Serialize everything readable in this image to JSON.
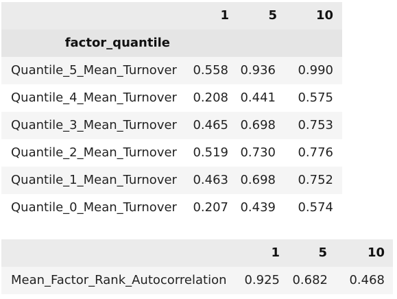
{
  "turnover_table": {
    "columns": [
      "1",
      "5",
      "10"
    ],
    "index_name": "factor_quantile",
    "rows": [
      {
        "label": "Quantile_5_Mean_Turnover",
        "values": [
          "0.558",
          "0.936",
          "0.990"
        ]
      },
      {
        "label": "Quantile_4_Mean_Turnover",
        "values": [
          "0.208",
          "0.441",
          "0.575"
        ]
      },
      {
        "label": "Quantile_3_Mean_Turnover",
        "values": [
          "0.465",
          "0.698",
          "0.753"
        ]
      },
      {
        "label": "Quantile_2_Mean_Turnover",
        "values": [
          "0.519",
          "0.730",
          "0.776"
        ]
      },
      {
        "label": "Quantile_1_Mean_Turnover",
        "values": [
          "0.463",
          "0.698",
          "0.752"
        ]
      },
      {
        "label": "Quantile_0_Mean_Turnover",
        "values": [
          "0.207",
          "0.439",
          "0.574"
        ]
      }
    ]
  },
  "autocorrelation_table": {
    "columns": [
      "1",
      "5",
      "10"
    ],
    "rows": [
      {
        "label": "Mean_Factor_Rank_Autocorrelation",
        "values": [
          "0.925",
          "0.682",
          "0.468"
        ]
      }
    ]
  }
}
